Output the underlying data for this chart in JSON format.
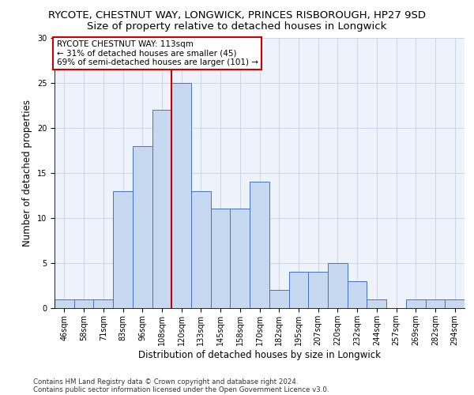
{
  "title1": "RYCOTE, CHESTNUT WAY, LONGWICK, PRINCES RISBOROUGH, HP27 9SD",
  "title2": "Size of property relative to detached houses in Longwick",
  "xlabel": "Distribution of detached houses by size in Longwick",
  "ylabel": "Number of detached properties",
  "footer_line1": "Contains HM Land Registry data © Crown copyright and database right 2024.",
  "footer_line2": "Contains public sector information licensed under the Open Government Licence v3.0.",
  "annotation_title": "RYCOTE CHESTNUT WAY: 113sqm",
  "annotation_line1": "← 31% of detached houses are smaller (45)",
  "annotation_line2": "69% of semi-detached houses are larger (101) →",
  "bar_labels": [
    "46sqm",
    "58sqm",
    "71sqm",
    "83sqm",
    "96sqm",
    "108sqm",
    "120sqm",
    "133sqm",
    "145sqm",
    "158sqm",
    "170sqm",
    "182sqm",
    "195sqm",
    "207sqm",
    "220sqm",
    "232sqm",
    "244sqm",
    "257sqm",
    "269sqm",
    "282sqm",
    "294sqm"
  ],
  "bar_values": [
    1,
    1,
    1,
    13,
    18,
    22,
    25,
    13,
    11,
    11,
    14,
    2,
    4,
    4,
    5,
    3,
    1,
    0,
    1,
    1,
    1
  ],
  "bar_color": "#c6d9f0",
  "bar_edge_color": "#4472c4",
  "vline_x": 5.5,
  "vline_color": "#cc0000",
  "ylim": [
    0,
    30
  ],
  "yticks": [
    0,
    5,
    10,
    15,
    20,
    25,
    30
  ],
  "grid_color": "#c8d0e0",
  "bg_color": "#eef2fa",
  "title1_fontsize": 9.5,
  "title2_fontsize": 9.5,
  "xlabel_fontsize": 8.5,
  "ylabel_fontsize": 8.5,
  "tick_fontsize": 7.0,
  "annotation_fontsize": 7.5,
  "footer_fontsize": 6.2
}
